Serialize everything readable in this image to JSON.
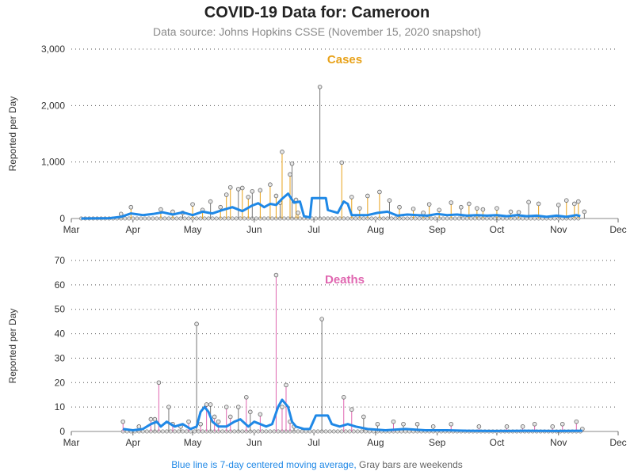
{
  "header": {
    "title": "COVID-19 Data for: Cameroon",
    "subtitle": "Data source: Johns Hopkins CSSE (November 15, 2020 snapshot)"
  },
  "footer": {
    "blue_text": "Blue line is 7-day centered moving average,",
    "gray_text": " Gray bars are weekends"
  },
  "colors": {
    "cases": "#e8a21a",
    "deaths": "#e066b0",
    "average": "#1f88e6",
    "weekend": "#777777"
  },
  "chart_data": [
    {
      "type": "line",
      "title": "Cases",
      "ylabel": "Reported per Day",
      "xlabel": "",
      "x_ticks": [
        "Mar",
        "Apr",
        "May",
        "Jun",
        "Jul",
        "Aug",
        "Sep",
        "Oct",
        "Nov",
        "Dec"
      ],
      "y_ticks": [
        "0",
        "1,000",
        "2,000",
        "3,000"
      ],
      "ylim": [
        0,
        3000
      ],
      "grid": "horizontal dotted",
      "x_range": [
        "2020-03-01",
        "2020-12-01"
      ],
      "spikes": [
        {
          "date": "2020-03-26",
          "value": 80
        },
        {
          "date": "2020-03-31",
          "value": 200
        },
        {
          "date": "2020-04-15",
          "value": 160
        },
        {
          "date": "2020-04-21",
          "value": 120
        },
        {
          "date": "2020-04-26",
          "value": 100
        },
        {
          "date": "2020-05-01",
          "value": 250
        },
        {
          "date": "2020-05-06",
          "value": 150
        },
        {
          "date": "2020-05-10",
          "value": 300
        },
        {
          "date": "2020-05-15",
          "value": 200
        },
        {
          "date": "2020-05-18",
          "value": 420
        },
        {
          "date": "2020-05-20",
          "value": 550
        },
        {
          "date": "2020-05-24",
          "value": 520
        },
        {
          "date": "2020-05-26",
          "value": 540
        },
        {
          "date": "2020-05-29",
          "value": 380
        },
        {
          "date": "2020-05-31",
          "value": 480
        },
        {
          "date": "2020-06-04",
          "value": 500
        },
        {
          "date": "2020-06-09",
          "value": 600
        },
        {
          "date": "2020-06-12",
          "value": 400
        },
        {
          "date": "2020-06-14",
          "value": 280
        },
        {
          "date": "2020-06-15",
          "value": 1180
        },
        {
          "date": "2020-06-19",
          "value": 780
        },
        {
          "date": "2020-06-20",
          "value": 970
        },
        {
          "date": "2020-06-22",
          "value": 330
        },
        {
          "date": "2020-06-23",
          "value": 100
        },
        {
          "date": "2020-07-04",
          "value": 2330
        },
        {
          "date": "2020-07-15",
          "value": 990
        },
        {
          "date": "2020-07-20",
          "value": 380
        },
        {
          "date": "2020-07-24",
          "value": 180
        },
        {
          "date": "2020-07-28",
          "value": 400
        },
        {
          "date": "2020-08-03",
          "value": 470
        },
        {
          "date": "2020-08-08",
          "value": 320
        },
        {
          "date": "2020-08-13",
          "value": 200
        },
        {
          "date": "2020-08-20",
          "value": 170
        },
        {
          "date": "2020-08-25",
          "value": 100
        },
        {
          "date": "2020-08-28",
          "value": 250
        },
        {
          "date": "2020-09-02",
          "value": 150
        },
        {
          "date": "2020-09-08",
          "value": 280
        },
        {
          "date": "2020-09-13",
          "value": 200
        },
        {
          "date": "2020-09-17",
          "value": 260
        },
        {
          "date": "2020-09-21",
          "value": 180
        },
        {
          "date": "2020-09-24",
          "value": 160
        },
        {
          "date": "2020-10-01",
          "value": 180
        },
        {
          "date": "2020-10-08",
          "value": 120
        },
        {
          "date": "2020-10-12",
          "value": 110
        },
        {
          "date": "2020-10-17",
          "value": 290
        },
        {
          "date": "2020-10-22",
          "value": 260
        },
        {
          "date": "2020-11-01",
          "value": 240
        },
        {
          "date": "2020-11-05",
          "value": 320
        },
        {
          "date": "2020-11-09",
          "value": 260
        },
        {
          "date": "2020-11-11",
          "value": 300
        },
        {
          "date": "2020-11-14",
          "value": 120
        }
      ],
      "moving_average": [
        {
          "date": "2020-03-06",
          "value": 0
        },
        {
          "date": "2020-03-20",
          "value": 5
        },
        {
          "date": "2020-03-26",
          "value": 30
        },
        {
          "date": "2020-03-31",
          "value": 90
        },
        {
          "date": "2020-04-06",
          "value": 60
        },
        {
          "date": "2020-04-11",
          "value": 80
        },
        {
          "date": "2020-04-16",
          "value": 110
        },
        {
          "date": "2020-04-21",
          "value": 70
        },
        {
          "date": "2020-04-26",
          "value": 110
        },
        {
          "date": "2020-05-01",
          "value": 60
        },
        {
          "date": "2020-05-06",
          "value": 120
        },
        {
          "date": "2020-05-11",
          "value": 90
        },
        {
          "date": "2020-05-16",
          "value": 150
        },
        {
          "date": "2020-05-21",
          "value": 200
        },
        {
          "date": "2020-05-26",
          "value": 130
        },
        {
          "date": "2020-05-31",
          "value": 230
        },
        {
          "date": "2020-06-03",
          "value": 270
        },
        {
          "date": "2020-06-06",
          "value": 200
        },
        {
          "date": "2020-06-09",
          "value": 260
        },
        {
          "date": "2020-06-12",
          "value": 240
        },
        {
          "date": "2020-06-15",
          "value": 350
        },
        {
          "date": "2020-06-18",
          "value": 440
        },
        {
          "date": "2020-06-21",
          "value": 280
        },
        {
          "date": "2020-06-24",
          "value": 300
        },
        {
          "date": "2020-06-26",
          "value": 40
        },
        {
          "date": "2020-06-29",
          "value": 20
        },
        {
          "date": "2020-06-30",
          "value": 360
        },
        {
          "date": "2020-07-07",
          "value": 360
        },
        {
          "date": "2020-07-08",
          "value": 150
        },
        {
          "date": "2020-07-13",
          "value": 100
        },
        {
          "date": "2020-07-16",
          "value": 300
        },
        {
          "date": "2020-07-18",
          "value": 260
        },
        {
          "date": "2020-07-20",
          "value": 60
        },
        {
          "date": "2020-07-28",
          "value": 60
        },
        {
          "date": "2020-08-02",
          "value": 100
        },
        {
          "date": "2020-08-07",
          "value": 120
        },
        {
          "date": "2020-08-12",
          "value": 50
        },
        {
          "date": "2020-08-17",
          "value": 70
        },
        {
          "date": "2020-08-22",
          "value": 60
        },
        {
          "date": "2020-08-27",
          "value": 50
        },
        {
          "date": "2020-09-01",
          "value": 80
        },
        {
          "date": "2020-09-06",
          "value": 60
        },
        {
          "date": "2020-09-11",
          "value": 70
        },
        {
          "date": "2020-09-16",
          "value": 50
        },
        {
          "date": "2020-09-21",
          "value": 60
        },
        {
          "date": "2020-09-26",
          "value": 50
        },
        {
          "date": "2020-10-01",
          "value": 60
        },
        {
          "date": "2020-10-06",
          "value": 40
        },
        {
          "date": "2020-10-11",
          "value": 60
        },
        {
          "date": "2020-10-16",
          "value": 40
        },
        {
          "date": "2020-10-21",
          "value": 50
        },
        {
          "date": "2020-10-26",
          "value": 30
        },
        {
          "date": "2020-10-31",
          "value": 50
        },
        {
          "date": "2020-11-05",
          "value": 30
        },
        {
          "date": "2020-11-10",
          "value": 60
        },
        {
          "date": "2020-11-12",
          "value": 40
        }
      ]
    },
    {
      "type": "line",
      "title": "Deaths",
      "ylabel": "Reported per Day",
      "xlabel": "",
      "x_ticks": [
        "Mar",
        "Apr",
        "May",
        "Jun",
        "Jul",
        "Aug",
        "Sep",
        "Oct",
        "Nov",
        "Dec"
      ],
      "y_ticks": [
        "0",
        "10",
        "20",
        "30",
        "40",
        "50",
        "60",
        "70"
      ],
      "ylim": [
        0,
        70
      ],
      "grid": "horizontal dotted",
      "x_range": [
        "2020-03-01",
        "2020-12-01"
      ],
      "spikes": [
        {
          "date": "2020-03-27",
          "value": 4
        },
        {
          "date": "2020-04-04",
          "value": 2
        },
        {
          "date": "2020-04-10",
          "value": 5
        },
        {
          "date": "2020-04-12",
          "value": 5
        },
        {
          "date": "2020-04-14",
          "value": 20
        },
        {
          "date": "2020-04-19",
          "value": 10
        },
        {
          "date": "2020-04-21",
          "value": 3
        },
        {
          "date": "2020-04-25",
          "value": 2
        },
        {
          "date": "2020-04-29",
          "value": 4
        },
        {
          "date": "2020-05-03",
          "value": 44
        },
        {
          "date": "2020-05-05",
          "value": 3
        },
        {
          "date": "2020-05-08",
          "value": 11
        },
        {
          "date": "2020-05-10",
          "value": 11
        },
        {
          "date": "2020-05-12",
          "value": 6
        },
        {
          "date": "2020-05-14",
          "value": 4
        },
        {
          "date": "2020-05-18",
          "value": 10
        },
        {
          "date": "2020-05-20",
          "value": 6
        },
        {
          "date": "2020-05-24",
          "value": 10
        },
        {
          "date": "2020-05-28",
          "value": 14
        },
        {
          "date": "2020-05-30",
          "value": 8
        },
        {
          "date": "2020-06-04",
          "value": 7
        },
        {
          "date": "2020-06-12",
          "value": 64
        },
        {
          "date": "2020-06-15",
          "value": 10
        },
        {
          "date": "2020-06-17",
          "value": 19
        },
        {
          "date": "2020-06-19",
          "value": 4
        },
        {
          "date": "2020-06-21",
          "value": 2
        },
        {
          "date": "2020-07-05",
          "value": 46
        },
        {
          "date": "2020-07-16",
          "value": 14
        },
        {
          "date": "2020-07-20",
          "value": 9
        },
        {
          "date": "2020-07-26",
          "value": 6
        },
        {
          "date": "2020-08-02",
          "value": 3
        },
        {
          "date": "2020-08-10",
          "value": 4
        },
        {
          "date": "2020-08-15",
          "value": 3
        },
        {
          "date": "2020-08-22",
          "value": 3
        },
        {
          "date": "2020-08-30",
          "value": 2
        },
        {
          "date": "2020-09-08",
          "value": 3
        },
        {
          "date": "2020-09-22",
          "value": 2
        },
        {
          "date": "2020-10-06",
          "value": 2
        },
        {
          "date": "2020-10-14",
          "value": 2
        },
        {
          "date": "2020-10-20",
          "value": 3
        },
        {
          "date": "2020-10-29",
          "value": 2
        },
        {
          "date": "2020-11-03",
          "value": 3
        },
        {
          "date": "2020-11-10",
          "value": 4
        },
        {
          "date": "2020-11-13",
          "value": 1
        }
      ],
      "moving_average": [
        {
          "date": "2020-03-27",
          "value": 1
        },
        {
          "date": "2020-04-01",
          "value": 0.5
        },
        {
          "date": "2020-04-06",
          "value": 1
        },
        {
          "date": "2020-04-10",
          "value": 3
        },
        {
          "date": "2020-04-13",
          "value": 4
        },
        {
          "date": "2020-04-15",
          "value": 2
        },
        {
          "date": "2020-04-18",
          "value": 4
        },
        {
          "date": "2020-04-22",
          "value": 2
        },
        {
          "date": "2020-04-26",
          "value": 3
        },
        {
          "date": "2020-04-30",
          "value": 1
        },
        {
          "date": "2020-05-03",
          "value": 2
        },
        {
          "date": "2020-05-05",
          "value": 8
        },
        {
          "date": "2020-05-07",
          "value": 10
        },
        {
          "date": "2020-05-09",
          "value": 8
        },
        {
          "date": "2020-05-11",
          "value": 4
        },
        {
          "date": "2020-05-14",
          "value": 2
        },
        {
          "date": "2020-05-18",
          "value": 2
        },
        {
          "date": "2020-05-22",
          "value": 4
        },
        {
          "date": "2020-05-25",
          "value": 5
        },
        {
          "date": "2020-05-29",
          "value": 2
        },
        {
          "date": "2020-06-01",
          "value": 4
        },
        {
          "date": "2020-06-04",
          "value": 3
        },
        {
          "date": "2020-06-07",
          "value": 2
        },
        {
          "date": "2020-06-10",
          "value": 3
        },
        {
          "date": "2020-06-13",
          "value": 10
        },
        {
          "date": "2020-06-15",
          "value": 13
        },
        {
          "date": "2020-06-18",
          "value": 10
        },
        {
          "date": "2020-06-20",
          "value": 4
        },
        {
          "date": "2020-06-22",
          "value": 2
        },
        {
          "date": "2020-06-26",
          "value": 1
        },
        {
          "date": "2020-06-29",
          "value": 1
        },
        {
          "date": "2020-07-02",
          "value": 6.5
        },
        {
          "date": "2020-07-08",
          "value": 6.5
        },
        {
          "date": "2020-07-10",
          "value": 3
        },
        {
          "date": "2020-07-14",
          "value": 2
        },
        {
          "date": "2020-07-18",
          "value": 3
        },
        {
          "date": "2020-07-22",
          "value": 2
        },
        {
          "date": "2020-07-28",
          "value": 1
        },
        {
          "date": "2020-08-06",
          "value": 0.5
        },
        {
          "date": "2020-08-16",
          "value": 1
        },
        {
          "date": "2020-08-26",
          "value": 0.5
        },
        {
          "date": "2020-09-06",
          "value": 0.5
        },
        {
          "date": "2020-09-16",
          "value": 0.3
        },
        {
          "date": "2020-09-30",
          "value": 0.2
        },
        {
          "date": "2020-10-15",
          "value": 0.3
        },
        {
          "date": "2020-10-31",
          "value": 0.2
        },
        {
          "date": "2020-11-13",
          "value": 0.3
        }
      ]
    }
  ]
}
